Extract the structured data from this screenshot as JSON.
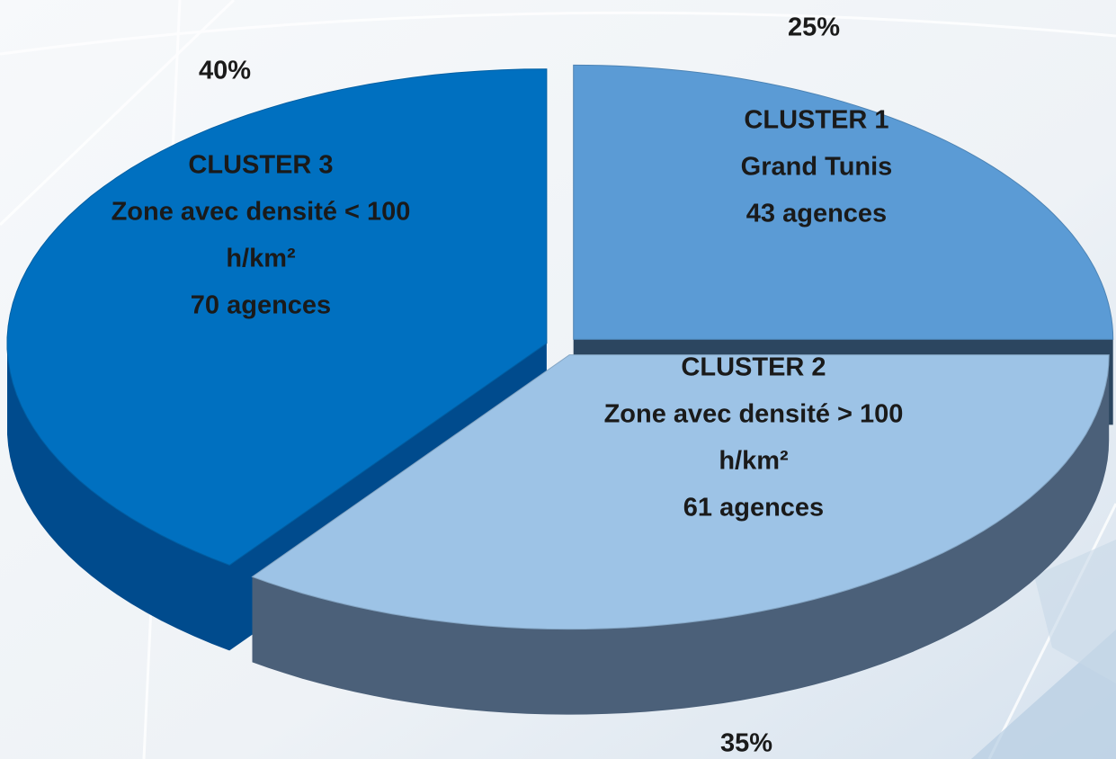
{
  "chart_data": {
    "type": "pie",
    "labels": [
      [
        "CLUSTER 1",
        "Grand Tunis",
        "43 agences"
      ],
      [
        "CLUSTER 2",
        "Zone avec densité > 100",
        "h/km²",
        "61 agences"
      ],
      [
        "CLUSTER 3",
        "Zone avec densité < 100",
        "h/km²",
        "70 agences"
      ]
    ],
    "values": [
      25,
      35,
      40
    ],
    "value_labels": [
      "25%",
      "35%",
      "40%"
    ],
    "colors": [
      "#5b9bd5",
      "#9dc3e6",
      "#0070c0"
    ]
  }
}
